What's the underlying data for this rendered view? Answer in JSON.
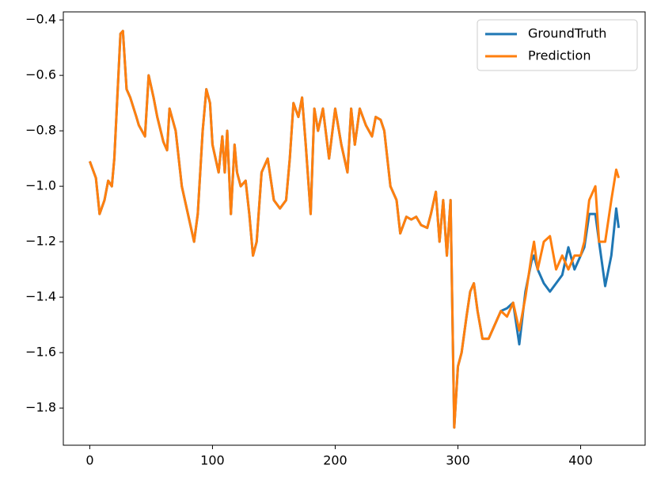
{
  "chart_data": {
    "type": "line",
    "x": [
      0,
      5,
      8,
      12,
      15,
      18,
      20,
      22,
      25,
      27,
      30,
      33,
      38,
      40,
      45,
      48,
      52,
      55,
      60,
      63,
      65,
      70,
      75,
      80,
      85,
      88,
      92,
      95,
      98,
      100,
      105,
      108,
      110,
      112,
      115,
      118,
      120,
      123,
      127,
      130,
      133,
      136,
      140,
      145,
      150,
      155,
      160,
      163,
      166,
      170,
      173,
      176,
      180,
      183,
      186,
      190,
      195,
      200,
      205,
      210,
      213,
      216,
      220,
      225,
      230,
      233,
      237,
      240,
      245,
      250,
      253,
      258,
      262,
      266,
      270,
      275,
      278,
      282,
      285,
      288,
      291,
      294,
      297,
      300,
      303,
      307,
      310,
      313,
      316,
      320,
      325,
      330,
      335,
      340,
      345,
      350,
      355,
      360,
      362,
      365,
      370,
      375,
      380,
      385,
      390,
      395,
      400,
      403,
      407,
      412,
      415,
      420,
      425,
      429,
      431
    ],
    "series": [
      {
        "name": "GroundTruth",
        "color": "#1f77b4",
        "values": [
          -0.91,
          -0.97,
          -1.1,
          -1.05,
          -0.98,
          -1.0,
          -0.9,
          -0.72,
          -0.45,
          -0.44,
          -0.65,
          -0.68,
          -0.75,
          -0.78,
          -0.82,
          -0.6,
          -0.68,
          -0.75,
          -0.84,
          -0.87,
          -0.72,
          -0.8,
          -1.0,
          -1.1,
          -1.2,
          -1.1,
          -0.8,
          -0.65,
          -0.7,
          -0.85,
          -0.95,
          -0.82,
          -0.95,
          -0.8,
          -1.1,
          -0.85,
          -0.95,
          -1.0,
          -0.98,
          -1.1,
          -1.25,
          -1.2,
          -0.95,
          -0.9,
          -1.05,
          -1.08,
          -1.05,
          -0.9,
          -0.7,
          -0.75,
          -0.68,
          -0.85,
          -1.1,
          -0.72,
          -0.8,
          -0.72,
          -0.9,
          -0.72,
          -0.85,
          -0.95,
          -0.72,
          -0.85,
          -0.72,
          -0.78,
          -0.82,
          -0.75,
          -0.76,
          -0.8,
          -1.0,
          -1.05,
          -1.17,
          -1.11,
          -1.12,
          -1.11,
          -1.14,
          -1.15,
          -1.1,
          -1.02,
          -1.2,
          -1.05,
          -1.25,
          -1.05,
          -1.87,
          -1.65,
          -1.6,
          -1.47,
          -1.38,
          -1.35,
          -1.45,
          -1.55,
          -1.55,
          -1.5,
          -1.45,
          -1.44,
          -1.42,
          -1.57,
          -1.38,
          -1.27,
          -1.25,
          -1.3,
          -1.35,
          -1.38,
          -1.35,
          -1.32,
          -1.22,
          -1.3,
          -1.25,
          -1.22,
          -1.1,
          -1.1,
          -1.2,
          -1.36,
          -1.25,
          -1.08,
          -1.15
        ]
      },
      {
        "name": "Prediction",
        "color": "#ff7f0e",
        "values": [
          -0.91,
          -0.97,
          -1.1,
          -1.05,
          -0.98,
          -1.0,
          -0.9,
          -0.72,
          -0.45,
          -0.44,
          -0.65,
          -0.68,
          -0.75,
          -0.78,
          -0.82,
          -0.6,
          -0.68,
          -0.75,
          -0.84,
          -0.87,
          -0.72,
          -0.8,
          -1.0,
          -1.1,
          -1.2,
          -1.1,
          -0.8,
          -0.65,
          -0.7,
          -0.85,
          -0.95,
          -0.82,
          -0.95,
          -0.8,
          -1.1,
          -0.85,
          -0.95,
          -1.0,
          -0.98,
          -1.1,
          -1.25,
          -1.2,
          -0.95,
          -0.9,
          -1.05,
          -1.08,
          -1.05,
          -0.9,
          -0.7,
          -0.75,
          -0.68,
          -0.85,
          -1.1,
          -0.72,
          -0.8,
          -0.72,
          -0.9,
          -0.72,
          -0.85,
          -0.95,
          -0.72,
          -0.85,
          -0.72,
          -0.78,
          -0.82,
          -0.75,
          -0.76,
          -0.8,
          -1.0,
          -1.05,
          -1.17,
          -1.11,
          -1.12,
          -1.11,
          -1.14,
          -1.15,
          -1.1,
          -1.02,
          -1.2,
          -1.05,
          -1.25,
          -1.05,
          -1.87,
          -1.65,
          -1.6,
          -1.47,
          -1.38,
          -1.35,
          -1.45,
          -1.55,
          -1.55,
          -1.5,
          -1.45,
          -1.47,
          -1.42,
          -1.52,
          -1.4,
          -1.25,
          -1.2,
          -1.3,
          -1.2,
          -1.18,
          -1.3,
          -1.25,
          -1.3,
          -1.25,
          -1.25,
          -1.2,
          -1.05,
          -1.0,
          -1.2,
          -1.2,
          -1.05,
          -0.94,
          -0.97
        ]
      }
    ],
    "xlim": [
      -21.55,
      452.55
    ],
    "ylim": [
      -1.934,
      -0.371
    ],
    "xticks": [
      0,
      100,
      200,
      300,
      400
    ],
    "yticks": [
      {
        "value": -1.8,
        "label": "−1.8"
      },
      {
        "value": -1.6,
        "label": "−1.6"
      },
      {
        "value": -1.4,
        "label": "−1.4"
      },
      {
        "value": -1.2,
        "label": "−1.2"
      },
      {
        "value": -1.0,
        "label": "−1.0"
      },
      {
        "value": -0.8,
        "label": "−0.8"
      },
      {
        "value": -0.6,
        "label": "−0.6"
      },
      {
        "value": -0.4,
        "label": "−0.4"
      }
    ],
    "grid": false,
    "legend": "upper right"
  }
}
